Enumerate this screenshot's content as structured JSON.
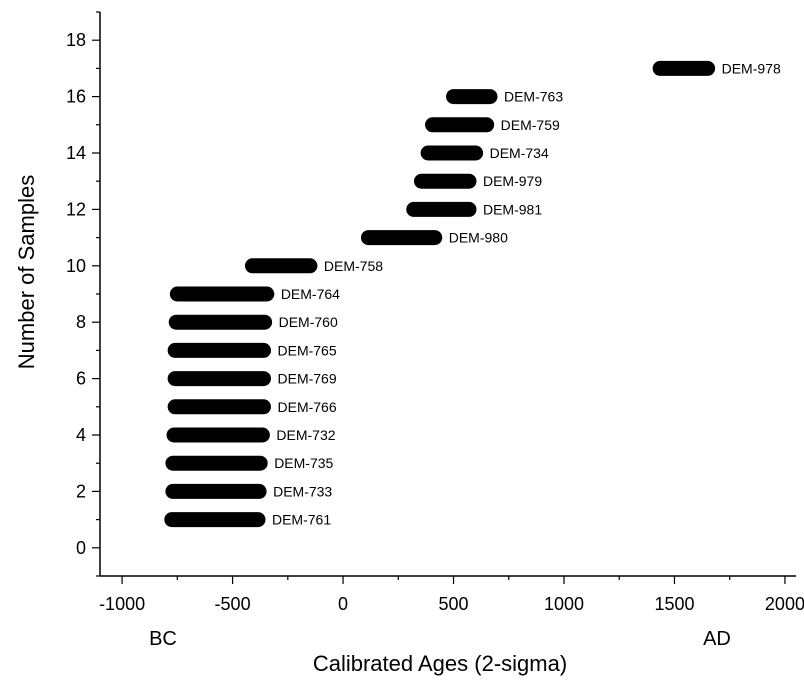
{
  "chart_data": {
    "type": "range-bar",
    "xlabel": "Calibrated Ages (2-sigma)",
    "ylabel": "Number of Samples",
    "xlim": [
      -1100,
      2050
    ],
    "ylim": [
      -1,
      19
    ],
    "xticks": [
      -1000,
      -500,
      0,
      500,
      1000,
      1500,
      2000
    ],
    "xtick_labels": [
      "-1000",
      "-500",
      "0",
      "500",
      "1000",
      "1500",
      "2000"
    ],
    "yticks": [
      0,
      2,
      4,
      6,
      8,
      10,
      12,
      14,
      16,
      18
    ],
    "ytick_labels": [
      "0",
      "2",
      "4",
      "6",
      "8",
      "10",
      "12",
      "14",
      "16",
      "18"
    ],
    "era_left": "BC",
    "era_right": "AD",
    "bar_color": "#000000",
    "series": [
      {
        "label": "DEM-761",
        "y": 1,
        "start": -775,
        "end": -385
      },
      {
        "label": "DEM-733",
        "y": 2,
        "start": -770,
        "end": -380
      },
      {
        "label": "DEM-735",
        "y": 3,
        "start": -770,
        "end": -375
      },
      {
        "label": "DEM-732",
        "y": 4,
        "start": -765,
        "end": -365
      },
      {
        "label": "DEM-766",
        "y": 5,
        "start": -760,
        "end": -360
      },
      {
        "label": "DEM-769",
        "y": 6,
        "start": -760,
        "end": -360
      },
      {
        "label": "DEM-765",
        "y": 7,
        "start": -760,
        "end": -360
      },
      {
        "label": "DEM-760",
        "y": 8,
        "start": -755,
        "end": -355
      },
      {
        "label": "DEM-764",
        "y": 9,
        "start": -750,
        "end": -345
      },
      {
        "label": "DEM-758",
        "y": 10,
        "start": -410,
        "end": -150
      },
      {
        "label": "DEM-980",
        "y": 11,
        "start": 115,
        "end": 415
      },
      {
        "label": "DEM-981",
        "y": 12,
        "start": 320,
        "end": 570
      },
      {
        "label": "DEM-979",
        "y": 13,
        "start": 355,
        "end": 570
      },
      {
        "label": "DEM-734",
        "y": 14,
        "start": 385,
        "end": 600
      },
      {
        "label": "DEM-759",
        "y": 15,
        "start": 405,
        "end": 650
      },
      {
        "label": "DEM-763",
        "y": 16,
        "start": 500,
        "end": 665
      },
      {
        "label": "DEM-978",
        "y": 17,
        "start": 1435,
        "end": 1650
      }
    ]
  }
}
